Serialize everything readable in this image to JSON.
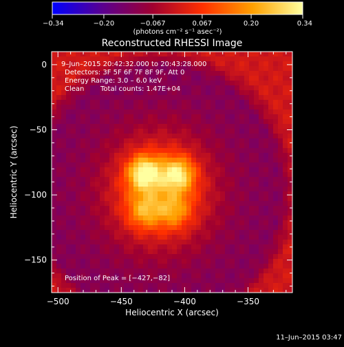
{
  "chart_data": {
    "type": "heatmap",
    "title": "Reconstructed RHESSI Image",
    "xlabel": "Heliocentric X (arcsec)",
    "ylabel": "Heliocentric Y (arcsec)",
    "xlim": [
      -505,
      -315
    ],
    "ylim": [
      -175,
      10
    ],
    "x_ticks": [
      -500,
      -450,
      -400,
      -350
    ],
    "x_tick_labels": [
      "−500",
      "−450",
      "−400",
      "−350"
    ],
    "y_ticks": [
      0,
      -50,
      -100,
      -150
    ],
    "y_tick_labels": [
      "0",
      "−50",
      "−100",
      "−150"
    ],
    "colorbar": {
      "range": [
        -0.34,
        0.34
      ],
      "ticks": [
        -0.34,
        -0.2,
        -0.067,
        0.067,
        0.2,
        0.34
      ],
      "tick_labels": [
        "−0.34",
        "−0.20",
        "−0.067",
        "0.067",
        "0.20",
        "0.34"
      ],
      "label": "(photons cm⁻² s⁻¹ asec⁻²)",
      "colors": [
        "#0000ff",
        "#5a0090",
        "#a00030",
        "#ff3000",
        "#ffa000",
        "#ffffa0"
      ]
    },
    "annotations": {
      "time_range": "9–Jun–2015 20:42:32.000 to 20:43:28.000",
      "detectors": "Detectors: 3F 5F 6F 7F 8F 9F, Att 0",
      "energy": "Energy Range: 3.0 – 6.0 keV",
      "method": "Clean",
      "counts": "Total counts: 1.47E+04",
      "peak": "Position of Peak = [−427,−82]"
    },
    "sources": [
      {
        "x": -432,
        "y": -83,
        "peak": 0.34
      },
      {
        "x": -405,
        "y": -84,
        "peak": 0.3
      },
      {
        "x": -432,
        "y": -113,
        "peak": 0.2
      },
      {
        "x": -408,
        "y": -113,
        "peak": 0.18
      }
    ],
    "background_level": -0.12
  },
  "footer": {
    "date": "11–Jun–2015 03:47"
  }
}
